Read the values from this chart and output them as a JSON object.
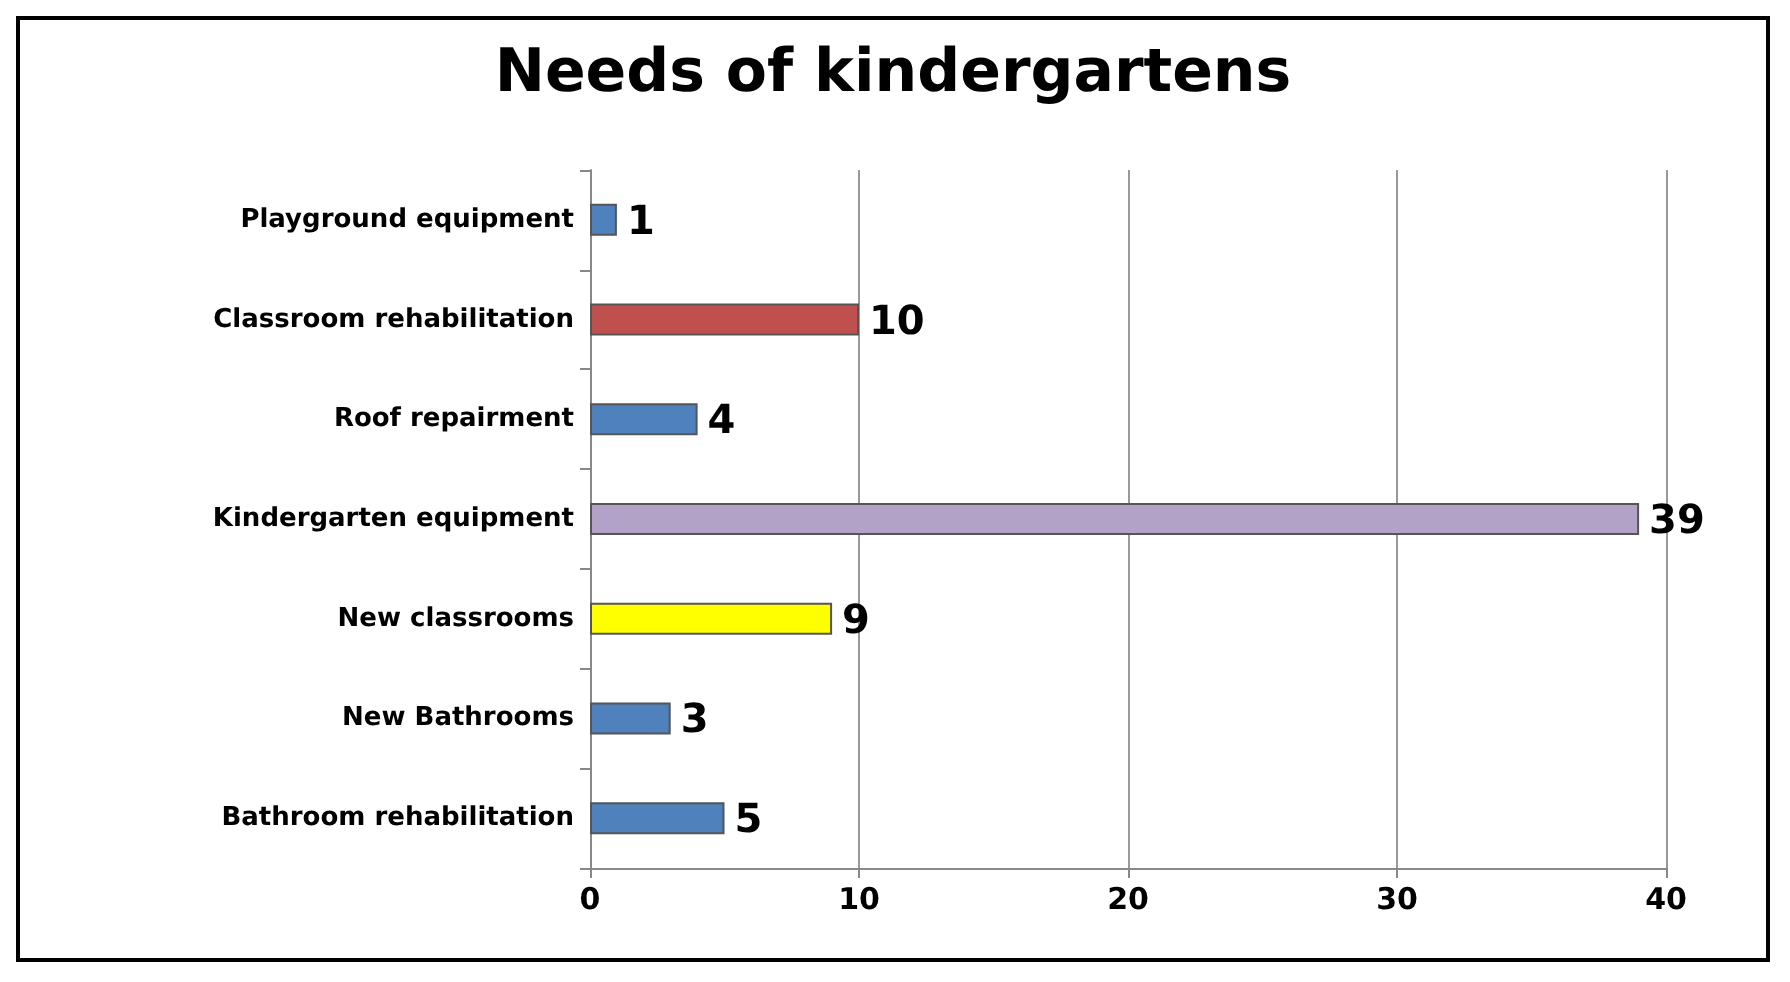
{
  "chart_data": {
    "type": "bar",
    "title": "Needs of kindergartens",
    "orientation": "horizontal",
    "categories": [
      "Playground equipment",
      "Classroom rehabilitation",
      "Roof repairment",
      "Kindergarten equipment",
      "New classrooms",
      "New Bathrooms",
      "Bathroom rehabilitation"
    ],
    "values": [
      1,
      10,
      4,
      39,
      9,
      3,
      5
    ],
    "colors": [
      "#4f81bd",
      "#c0504d",
      "#4f81bd",
      "#b3a2c7",
      "#ffff00",
      "#4f81bd",
      "#4f81bd"
    ],
    "xlim": [
      0,
      40
    ],
    "xticks": [
      0,
      10,
      20,
      30,
      40
    ],
    "grid": "x",
    "data_labels": true
  }
}
